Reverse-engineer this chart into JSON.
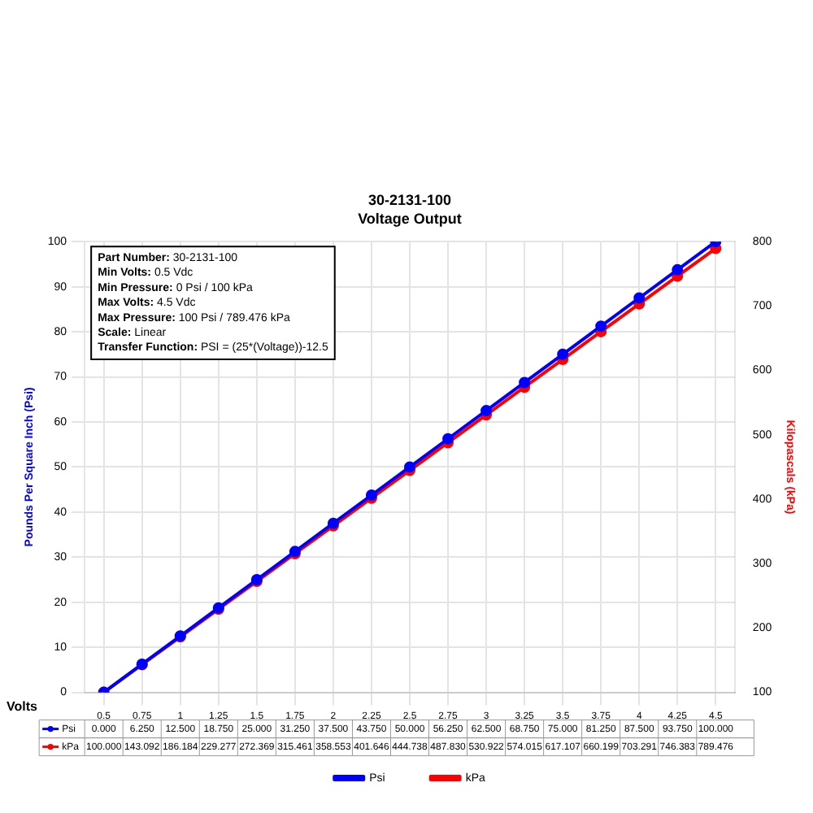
{
  "chart_data": {
    "type": "line",
    "title": "30-2131-100",
    "subtitle": "Voltage Output",
    "xlabel": "Volts",
    "ylabel": "Pounds Per Square Inch (Psi)",
    "y2label": "Kilopascals (kPa)",
    "categories": [
      "0.5",
      "0.75",
      "1",
      "1.25",
      "1.5",
      "1.75",
      "2",
      "2.25",
      "2.5",
      "2.75",
      "3",
      "3.25",
      "3.5",
      "3.75",
      "4",
      "4.25",
      "4.5"
    ],
    "series": [
      {
        "name": "Psi",
        "color": "#0000ff",
        "values": [
          0,
          6.25,
          12.5,
          18.75,
          25,
          31.25,
          37.5,
          43.75,
          50,
          56.25,
          62.5,
          68.75,
          75,
          81.25,
          87.5,
          93.75,
          100
        ],
        "value_labels": [
          "0.000",
          "6.250",
          "12.500",
          "18.750",
          "25.000",
          "31.250",
          "37.500",
          "43.750",
          "50.000",
          "56.250",
          "62.500",
          "68.750",
          "75.000",
          "81.250",
          "87.500",
          "93.750",
          "100.000"
        ]
      },
      {
        "name": "kPa",
        "color": "#ff0000",
        "axis": "y2",
        "values": [
          100,
          143.092,
          186.184,
          229.277,
          272.369,
          315.461,
          358.553,
          401.646,
          444.738,
          487.83,
          530.922,
          574.015,
          617.107,
          660.199,
          703.291,
          746.383,
          789.476
        ],
        "value_labels": [
          "100.000",
          "143.092",
          "186.184",
          "229.277",
          "272.369",
          "315.461",
          "358.553",
          "401.646",
          "444.738",
          "487.830",
          "530.922",
          "574.015",
          "617.107",
          "660.199",
          "703.291",
          "746.383",
          "789.476"
        ]
      }
    ],
    "ylim": [
      0,
      100
    ],
    "yticks": [
      0,
      10,
      20,
      30,
      40,
      50,
      60,
      70,
      80,
      90,
      100
    ],
    "y2lim": [
      100,
      800
    ],
    "y2ticks": [
      100,
      200,
      300,
      400,
      500,
      600,
      700,
      800
    ],
    "grid": true,
    "legend": "bottom",
    "marker": "circle",
    "line_style": "solid",
    "annotations": [
      "Part Number: 30-2131-100",
      "Min Volts: 0.5 Vdc",
      "Min Pressure: 0 Psi / 100 kPa",
      "Max Volts: 4.5 Vdc",
      "Max Pressure: 100 Psi / 789.476 kPa",
      "Scale: Linear",
      "Transfer Function: PSI = (25*(Voltage))-12.5"
    ]
  }
}
